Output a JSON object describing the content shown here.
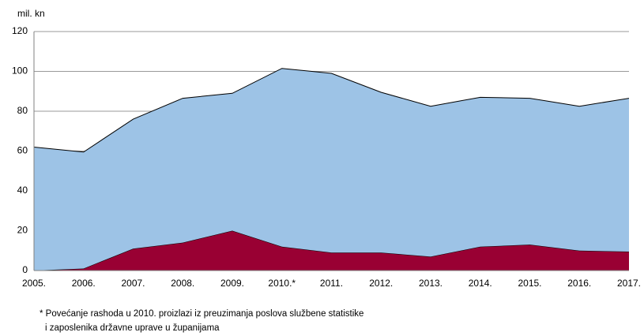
{
  "chart_data": {
    "type": "stacked_area",
    "y_axis_label": "mil. kn",
    "categories": [
      "2005.",
      "2006.",
      "2007.",
      "2008.",
      "2009.",
      "2010.*",
      "2011.",
      "2012.",
      "2013.",
      "2014.",
      "2015.",
      "2016.",
      "2017."
    ],
    "series": [
      {
        "color": "#990033",
        "values": [
          0,
          1,
          11,
          14,
          20,
          12,
          9,
          9,
          7,
          12,
          13,
          10,
          9.5
        ]
      },
      {
        "color": "#9dc3e6",
        "values": [
          62,
          58.5,
          65,
          72.5,
          69,
          89.5,
          90,
          80.5,
          75.5,
          75,
          73.5,
          72.5,
          77
        ]
      }
    ],
    "ylim": [
      0,
      120
    ],
    "yticks": [
      0,
      20,
      40,
      60,
      80,
      100,
      120
    ],
    "grid": true,
    "footnote": [
      "* Povećanje rashoda u 2010. proizlazi iz preuzimanja poslova službene statistike",
      "i zaposlenika državne uprave u županijama"
    ]
  }
}
